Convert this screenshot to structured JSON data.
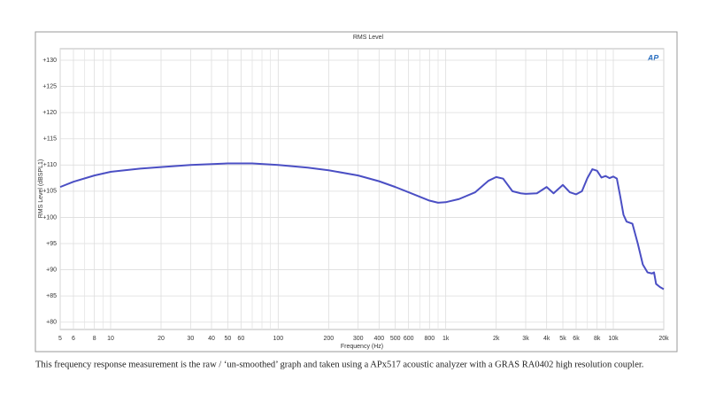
{
  "chart_data": {
    "type": "line",
    "title": "RMS Level",
    "x_label": "Frequency (Hz)",
    "y_label": "RMS Level (dBSPL1)",
    "logo": "AP",
    "caption": "This frequency response measurement is the raw / ‘un-smoothed’ graph and taken using a APx517 acoustic analyzer with a GRAS RA0402 high resolution coupler.",
    "x_scale": "log",
    "grid": true,
    "xlim": [
      5,
      20000
    ],
    "ylim": [
      78.6,
      132.2
    ],
    "xticks": [
      5,
      6,
      8,
      10,
      20,
      30,
      40,
      50,
      60,
      100,
      200,
      300,
      400,
      500,
      600,
      800,
      {
        "value": 1000,
        "label": "1k"
      },
      {
        "value": 2000,
        "label": "2k"
      },
      {
        "value": 3000,
        "label": "3k"
      },
      {
        "value": 4000,
        "label": "4k"
      },
      {
        "value": 5000,
        "label": "5k"
      },
      {
        "value": 6000,
        "label": "6k"
      },
      {
        "value": 8000,
        "label": "8k"
      },
      {
        "value": 10000,
        "label": "10k"
      },
      {
        "value": 20000,
        "label": "20k"
      }
    ],
    "minor_xticks": [
      7,
      9,
      70,
      80,
      90,
      700,
      900,
      7000,
      9000
    ],
    "yticks": [
      {
        "value": 80,
        "label": "+80"
      },
      {
        "value": 85,
        "label": "+85"
      },
      {
        "value": 90,
        "label": "+90"
      },
      {
        "value": 95,
        "label": "+95"
      },
      {
        "value": 100,
        "label": "+100"
      },
      {
        "value": 105,
        "label": "+105"
      },
      {
        "value": 110,
        "label": "+110"
      },
      {
        "value": 115,
        "label": "+115"
      },
      {
        "value": 120,
        "label": "+120"
      },
      {
        "value": 125,
        "label": "+125"
      },
      {
        "value": 130,
        "label": "+130"
      }
    ],
    "x": [
      5,
      6,
      8,
      10,
      15,
      20,
      30,
      50,
      70,
      100,
      150,
      200,
      300,
      400,
      500,
      600,
      800,
      900,
      1000,
      1200,
      1500,
      1800,
      2000,
      2200,
      2500,
      2800,
      3000,
      3500,
      4000,
      4400,
      5000,
      5500,
      6000,
      6500,
      7000,
      7500,
      8000,
      8500,
      9000,
      9500,
      10000,
      10500,
      11000,
      11500,
      12000,
      13000,
      14000,
      15000,
      16000,
      17000,
      17500,
      18000,
      19000,
      20000
    ],
    "series": [
      {
        "color": "#4b4fc4",
        "values": [
          105.8,
          106.8,
          108.0,
          108.7,
          109.3,
          109.6,
          110.0,
          110.3,
          110.3,
          110.0,
          109.5,
          109.0,
          108.0,
          106.9,
          105.8,
          104.8,
          103.2,
          102.8,
          102.9,
          103.5,
          104.8,
          107.0,
          107.7,
          107.4,
          105.0,
          104.6,
          104.5,
          104.6,
          105.8,
          104.6,
          106.2,
          104.8,
          104.4,
          105.0,
          107.5,
          109.2,
          108.9,
          107.6,
          107.9,
          107.5,
          107.8,
          107.4,
          104.0,
          100.5,
          99.2,
          98.8,
          95.0,
          91.0,
          89.5,
          89.3,
          89.5,
          87.3,
          86.7,
          86.3
        ]
      }
    ]
  }
}
